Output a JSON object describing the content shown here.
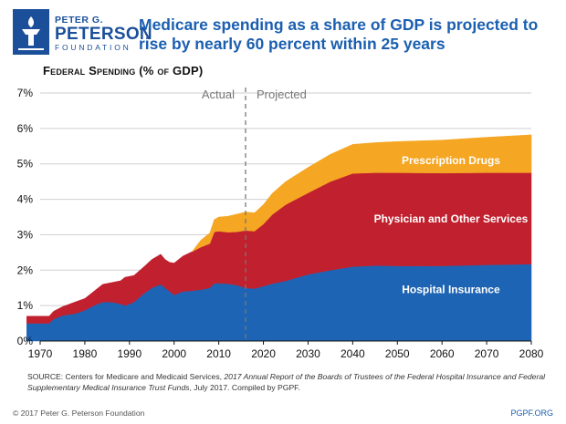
{
  "logo": {
    "line1": "PETER G.",
    "line2": "PETERSON",
    "line3": "FOUNDATION",
    "icon": "torch-icon",
    "color": "#1b4f9a"
  },
  "headline": "Medicare spending as a share of GDP is projected to rise by nearly 60 percent within 25 years",
  "chart_data": {
    "type": "area",
    "stacked": true,
    "title": "Federal Spending (% of GDP)",
    "xlabel": "",
    "ylabel": "Federal Spending (% of GDP)",
    "xlim": [
      1970,
      2080
    ],
    "ylim": [
      0,
      7
    ],
    "x_ticks": [
      1970,
      1980,
      1990,
      2000,
      2010,
      2020,
      2030,
      2040,
      2050,
      2060,
      2070,
      2080
    ],
    "y_ticks": [
      0,
      1,
      2,
      3,
      4,
      5,
      6,
      7
    ],
    "y_tick_labels": [
      "0%",
      "1%",
      "2%",
      "3%",
      "4%",
      "5%",
      "6%",
      "7%"
    ],
    "divider": {
      "x": 2016,
      "left_label": "Actual",
      "right_label": "Projected"
    },
    "series": [
      {
        "name": "Hospital Insurance",
        "label": "Hospital Insurance",
        "color": "#1e64b4",
        "points": [
          [
            1967,
            0.5
          ],
          [
            1970,
            0.5
          ],
          [
            1972,
            0.5
          ],
          [
            1973,
            0.62
          ],
          [
            1975,
            0.72
          ],
          [
            1978,
            0.78
          ],
          [
            1980,
            0.87
          ],
          [
            1982,
            1.0
          ],
          [
            1984,
            1.1
          ],
          [
            1986,
            1.1
          ],
          [
            1988,
            1.05
          ],
          [
            1989,
            1.0
          ],
          [
            1991,
            1.1
          ],
          [
            1993,
            1.32
          ],
          [
            1995,
            1.5
          ],
          [
            1997,
            1.6
          ],
          [
            1998,
            1.5
          ],
          [
            1999,
            1.4
          ],
          [
            2000,
            1.3
          ],
          [
            2001,
            1.35
          ],
          [
            2002,
            1.4
          ],
          [
            2004,
            1.42
          ],
          [
            2006,
            1.45
          ],
          [
            2008,
            1.5
          ],
          [
            2009,
            1.63
          ],
          [
            2010,
            1.63
          ],
          [
            2012,
            1.62
          ],
          [
            2014,
            1.58
          ],
          [
            2016,
            1.5
          ],
          [
            2018,
            1.48
          ],
          [
            2020,
            1.55
          ],
          [
            2022,
            1.62
          ],
          [
            2025,
            1.7
          ],
          [
            2030,
            1.88
          ],
          [
            2035,
            2.0
          ],
          [
            2040,
            2.1
          ],
          [
            2045,
            2.13
          ],
          [
            2050,
            2.12
          ],
          [
            2060,
            2.12
          ],
          [
            2070,
            2.15
          ],
          [
            2080,
            2.17
          ]
        ]
      },
      {
        "name": "Physician and Other Services",
        "label": "Physician and Other Services",
        "color": "#c1202e",
        "points": [
          [
            1967,
            0.2
          ],
          [
            1970,
            0.2
          ],
          [
            1972,
            0.2
          ],
          [
            1973,
            0.22
          ],
          [
            1975,
            0.25
          ],
          [
            1978,
            0.33
          ],
          [
            1980,
            0.33
          ],
          [
            1982,
            0.4
          ],
          [
            1984,
            0.5
          ],
          [
            1986,
            0.55
          ],
          [
            1988,
            0.65
          ],
          [
            1989,
            0.8
          ],
          [
            1991,
            0.75
          ],
          [
            1993,
            0.75
          ],
          [
            1995,
            0.8
          ],
          [
            1997,
            0.85
          ],
          [
            1998,
            0.8
          ],
          [
            1999,
            0.82
          ],
          [
            2000,
            0.9
          ],
          [
            2001,
            0.95
          ],
          [
            2002,
            1.0
          ],
          [
            2004,
            1.1
          ],
          [
            2006,
            1.2
          ],
          [
            2008,
            1.25
          ],
          [
            2009,
            1.45
          ],
          [
            2010,
            1.47
          ],
          [
            2012,
            1.45
          ],
          [
            2014,
            1.5
          ],
          [
            2016,
            1.62
          ],
          [
            2018,
            1.62
          ],
          [
            2020,
            1.75
          ],
          [
            2022,
            1.95
          ],
          [
            2025,
            2.15
          ],
          [
            2030,
            2.3
          ],
          [
            2035,
            2.5
          ],
          [
            2040,
            2.63
          ],
          [
            2045,
            2.62
          ],
          [
            2050,
            2.63
          ],
          [
            2060,
            2.62
          ],
          [
            2070,
            2.6
          ],
          [
            2080,
            2.58
          ]
        ]
      },
      {
        "name": "Prescription Drugs",
        "label": "Prescription Drugs",
        "color": "#f5a623",
        "points": [
          [
            2004,
            0.0
          ],
          [
            2006,
            0.2
          ],
          [
            2008,
            0.3
          ],
          [
            2009,
            0.35
          ],
          [
            2010,
            0.4
          ],
          [
            2012,
            0.45
          ],
          [
            2014,
            0.5
          ],
          [
            2016,
            0.52
          ],
          [
            2018,
            0.52
          ],
          [
            2020,
            0.55
          ],
          [
            2022,
            0.6
          ],
          [
            2025,
            0.65
          ],
          [
            2030,
            0.72
          ],
          [
            2035,
            0.77
          ],
          [
            2040,
            0.82
          ],
          [
            2045,
            0.85
          ],
          [
            2050,
            0.88
          ],
          [
            2060,
            0.93
          ],
          [
            2070,
            1.0
          ],
          [
            2080,
            1.07
          ]
        ]
      }
    ]
  },
  "source": {
    "prefix": "SOURCE: Centers for Medicare and Medicaid Services, ",
    "italic": "2017 Annual Report of the Boards of Trustees of the Federal Hospital Insurance and Federal Supplementary Medical Insurance Trust Funds",
    "suffix": ", July 2017. Compiled by PGPF."
  },
  "footer": {
    "copyright": "© 2017 Peter G. Peterson Foundation",
    "site": "PGPF.ORG"
  }
}
